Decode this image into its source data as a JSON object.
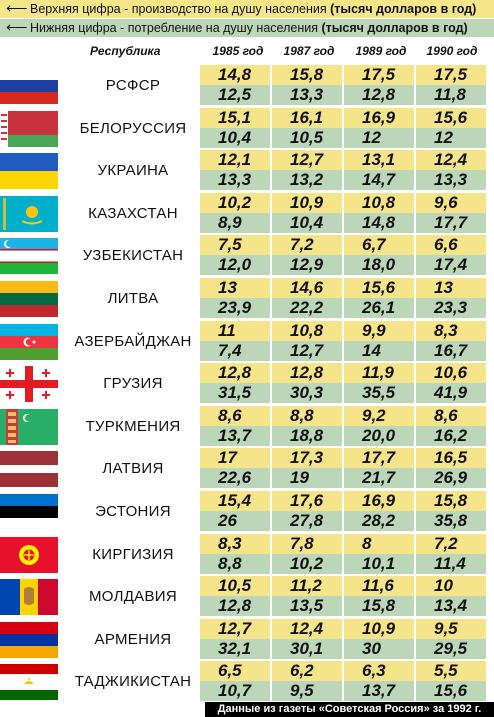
{
  "legend": {
    "top_text": "Верхняя цифра - производство на душу населения ",
    "top_bold": "(тысяч долларов в год)",
    "bottom_text": "Нижняя цифра - потребление на душу населения ",
    "bottom_bold": "(тысяч долларов в год)"
  },
  "header": {
    "republic": "Республика",
    "years": [
      "1985 год",
      "1987 год",
      "1989 год",
      "1990 год"
    ]
  },
  "rows": [
    {
      "name": "РСФСР",
      "prod": [
        "14,8",
        "15,8",
        "17,5",
        "17,5"
      ],
      "cons": [
        "12,5",
        "13,3",
        "12,8",
        "11,8"
      ]
    },
    {
      "name": "БЕЛОРУССИЯ",
      "prod": [
        "15,1",
        "16,1",
        "16,9",
        "15,6"
      ],
      "cons": [
        "10,4",
        "10,5",
        "12",
        "12"
      ]
    },
    {
      "name": "УКРАИНА",
      "prod": [
        "12,1",
        "12,7",
        "13,1",
        "12,4"
      ],
      "cons": [
        "13,3",
        "13,2",
        "14,7",
        "13,3"
      ]
    },
    {
      "name": "КАЗАХСТАН",
      "prod": [
        "10,2",
        "10,9",
        "10,8",
        "9,6"
      ],
      "cons": [
        "8,9",
        "10,4",
        "14,8",
        "17,7"
      ]
    },
    {
      "name": "УЗБЕКИСТАН",
      "prod": [
        "7,5",
        "7,2",
        "6,7",
        "6,6"
      ],
      "cons": [
        "12,0",
        "12,9",
        "18,0",
        "17,4"
      ]
    },
    {
      "name": "ЛИТВА",
      "prod": [
        "13",
        "14,6",
        "15,6",
        "13"
      ],
      "cons": [
        "23,9",
        "22,2",
        "26,1",
        "23,3"
      ]
    },
    {
      "name": "АЗЕРБАЙДЖАН",
      "prod": [
        "11",
        "10,8",
        "9,9",
        "8,3"
      ],
      "cons": [
        "7,4",
        "12,7",
        "14",
        "16,7"
      ]
    },
    {
      "name": "ГРУЗИЯ",
      "prod": [
        "12,8",
        "12,8",
        "11,9",
        "10,6"
      ],
      "cons": [
        "31,5",
        "30,3",
        "35,5",
        "41,9"
      ]
    },
    {
      "name": "ТУРКМЕНИЯ",
      "prod": [
        "8,6",
        "8,8",
        "9,2",
        "8,6"
      ],
      "cons": [
        "13,7",
        "18,8",
        "20,0",
        "16,2"
      ]
    },
    {
      "name": "ЛАТВИЯ",
      "prod": [
        "17",
        "17,3",
        "17,7",
        "16,5"
      ],
      "cons": [
        "22,6",
        "19",
        "21,7",
        "26,9"
      ]
    },
    {
      "name": "ЭСТОНИЯ",
      "prod": [
        "15,4",
        "17,6",
        "16,9",
        "15,8"
      ],
      "cons": [
        "26",
        "27,8",
        "28,2",
        "35,8"
      ]
    },
    {
      "name": "КИРГИЗИЯ",
      "prod": [
        "8,3",
        "7,8",
        "8",
        "7,2"
      ],
      "cons": [
        "8,8",
        "10,2",
        "10,1",
        "11,4"
      ]
    },
    {
      "name": "МОЛДАВИЯ",
      "prod": [
        "10,5",
        "11,2",
        "11,6",
        "10"
      ],
      "cons": [
        "12,8",
        "13,5",
        "15,8",
        "13,4"
      ]
    },
    {
      "name": "АРМЕНИЯ",
      "prod": [
        "12,7",
        "12,4",
        "10,9",
        "9,5"
      ],
      "cons": [
        "32,1",
        "30,1",
        "30",
        "29,5"
      ]
    },
    {
      "name": "ТАДЖИКИСТАН",
      "prod": [
        "6,5",
        "6,2",
        "6,3",
        "5,5"
      ],
      "cons": [
        "10,7",
        "9,5",
        "13,7",
        "15,6"
      ]
    }
  ],
  "flags": [
    "russia-flag-icon",
    "belarus-flag-icon",
    "ukraine-flag-icon",
    "kazakhstan-flag-icon",
    "uzbekistan-flag-icon",
    "lithuania-flag-icon",
    "azerbaijan-flag-icon",
    "georgia-flag-icon",
    "turkmenistan-flag-icon",
    "latvia-flag-icon",
    "estonia-flag-icon",
    "kyrgyzstan-flag-icon",
    "moldova-flag-icon",
    "armenia-flag-icon",
    "tajikistan-flag-icon"
  ],
  "footer": "Данные из газеты «Советская Россия» за 1992 г.",
  "colors": {
    "production_row": "#f6e48a",
    "consumption_row": "#bcd6b9"
  }
}
